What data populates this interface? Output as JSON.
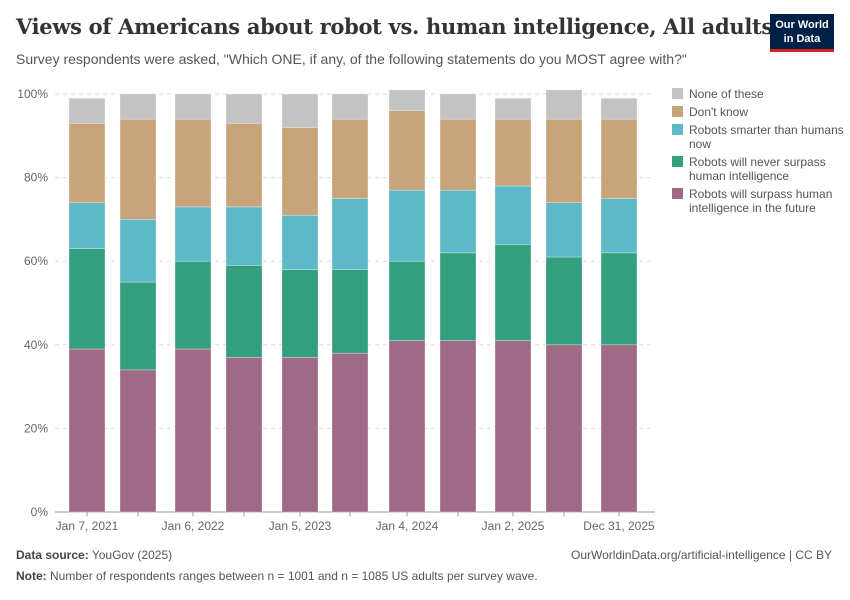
{
  "header": {
    "title": "Views of Americans about robot vs. human intelligence, All adults",
    "subtitle": "Survey respondents were asked, \"Which ONE, if any, of the following statements do you MOST agree with?\"",
    "logo": "Our World in Data"
  },
  "footer": {
    "source_label": "Data source:",
    "source": "YouGov (2025)",
    "url": "OurWorldinData.org/artificial-intelligence | CC BY",
    "note_label": "Note:",
    "note": "Number of respondents ranges between n = 1001 and n = 1085 US adults per survey wave."
  },
  "chart_data": {
    "type": "bar",
    "stacked": true,
    "title": "Views of Americans about robot vs. human intelligence, All adults",
    "ylim": [
      0,
      100
    ],
    "yticks": [
      "0%",
      "20%",
      "40%",
      "60%",
      "80%",
      "100%"
    ],
    "categories": [
      "Jan 7, 2021",
      "",
      "Jan 6, 2022",
      "",
      "Jan 5, 2023",
      "",
      "Jan 4, 2024",
      "",
      "Jan 2, 2025",
      "",
      "Dec 31, 2025"
    ],
    "legend_placement": "right",
    "series": [
      {
        "name": "Robots will surpass human intelligence in the future",
        "color": "#a06a86",
        "values": [
          39,
          34,
          39,
          37,
          37,
          38,
          41,
          41,
          41,
          40,
          40
        ]
      },
      {
        "name": "Robots will never surpass human intelligence",
        "color": "#339f7e",
        "values": [
          24,
          21,
          21,
          22,
          21,
          20,
          19,
          21,
          23,
          21,
          22
        ]
      },
      {
        "name": "Robots smarter than humans now",
        "color": "#5db9c8",
        "values": [
          11,
          15,
          13,
          14,
          13,
          17,
          17,
          15,
          14,
          13,
          13
        ]
      },
      {
        "name": "Don't know",
        "color": "#c8a47a",
        "values": [
          19,
          24,
          21,
          20,
          21,
          19,
          19,
          17,
          16,
          20,
          19
        ]
      },
      {
        "name": "None of these",
        "color": "#c3c3c3",
        "values": [
          6,
          6,
          6,
          7,
          8,
          6,
          5,
          6,
          5,
          7,
          5
        ]
      }
    ]
  }
}
